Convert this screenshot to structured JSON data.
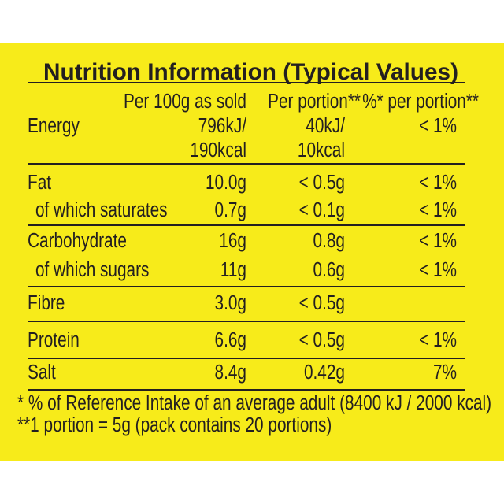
{
  "title": "Nutrition Information (Typical Values)",
  "table": {
    "header": [
      "Per 100g as sold",
      "Per portion**",
      "%* per portion**"
    ],
    "groups": [
      [
        {
          "label": "Energy",
          "per100": "796kJ/",
          "portion": "40kJ/",
          "ri": "< 1%"
        },
        {
          "per100": "190kcal",
          "portion": "10kcal"
        }
      ],
      [
        {
          "label": "Fat",
          "per100": "10.0g",
          "portion": "< 0.5g",
          "ri": "< 1%"
        },
        {
          "label": "of which saturates",
          "per100": "0.7g",
          "portion": "< 0.1g",
          "ri": "< 1%",
          "sub": true
        }
      ],
      [
        {
          "label": "Carbohydrate",
          "per100": "16g",
          "portion": "0.8g",
          "ri": "< 1%"
        },
        {
          "label": "of which sugars",
          "per100": "11g",
          "portion": "0.6g",
          "ri": "< 1%",
          "sub": true
        }
      ],
      [
        {
          "label": "Fibre",
          "per100": "3.0g",
          "portion": "< 0.5g"
        }
      ],
      [
        {
          "label": "Protein",
          "per100": "6.6g",
          "portion": "< 0.5g",
          "ri": "< 1%"
        }
      ],
      [
        {
          "label": "Salt",
          "per100": "8.4g",
          "portion": "0.42g",
          "ri": "7%"
        }
      ]
    ]
  },
  "footnotes": [
    "* % of Reference Intake of an average adult (8400 kJ / 2000 kcal)",
    "**1 portion =  5g (pack contains 20 portions)"
  ]
}
